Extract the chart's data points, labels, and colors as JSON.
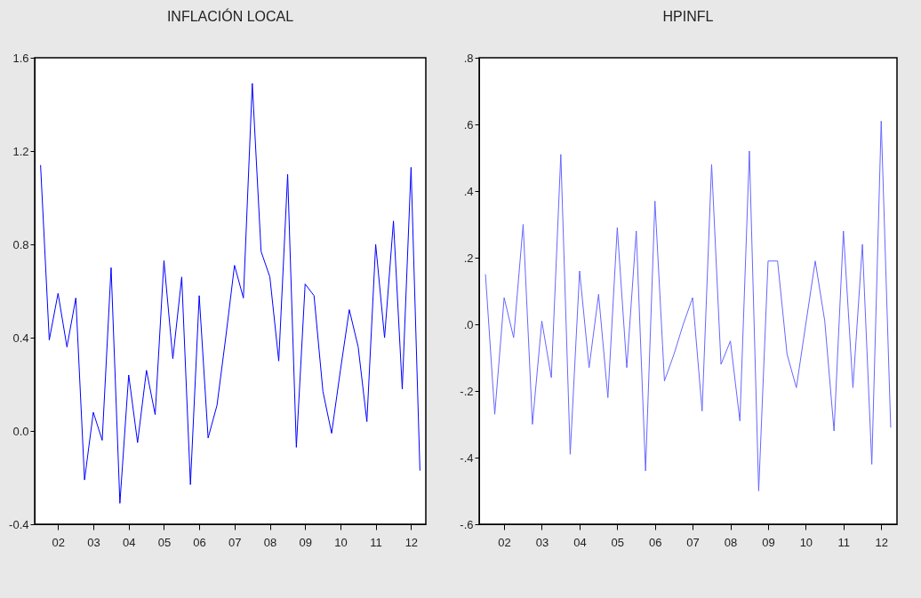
{
  "chart_data": [
    {
      "type": "line",
      "title": "INFLACIÓN LOCAL",
      "x": [
        "2002-01-01",
        "2002-04-01",
        "2002-07-01",
        "2002-10-01",
        "2003-01-01",
        "2003-04-01",
        "2003-07-01",
        "2003-10-01",
        "2004-01-01",
        "2004-04-01",
        "2004-07-01",
        "2004-10-01",
        "2005-01-01",
        "2005-04-01",
        "2005-07-01",
        "2005-10-01",
        "2006-01-01",
        "2006-04-01",
        "2006-07-01",
        "2006-10-01",
        "2007-01-01",
        "2007-04-01",
        "2007-07-01",
        "2007-10-01",
        "2008-01-01",
        "2008-04-01",
        "2008-07-01",
        "2008-10-01",
        "2009-01-01",
        "2009-04-01",
        "2009-07-01",
        "2009-10-01",
        "2010-01-01",
        "2010-04-01",
        "2010-07-01",
        "2010-10-01",
        "2011-01-01",
        "2011-04-01",
        "2011-07-01",
        "2011-10-01",
        "2012-01-01",
        "2012-04-01",
        "2012-07-01",
        "2012-10-01"
      ],
      "series": [
        {
          "color": "#0000ff",
          "values": [
            1.14,
            0.39,
            0.59,
            0.36,
            0.57,
            -0.21,
            0.08,
            -0.04,
            0.7,
            -0.31,
            0.24,
            -0.05,
            0.26,
            0.07,
            0.73,
            0.31,
            0.66,
            -0.23,
            0.58,
            -0.03,
            0.11,
            0.4,
            0.71,
            0.57,
            1.49,
            0.77,
            0.66,
            0.3,
            1.1,
            -0.07,
            0.63,
            0.58,
            0.17,
            -0.01,
            0.26,
            0.52,
            0.36,
            0.04,
            0.8,
            0.4,
            0.9,
            0.18,
            1.13,
            -0.17
          ]
        }
      ],
      "xlim": [
        "2001-11-01",
        "2012-12-01"
      ],
      "xticks": [
        {
          "value": "2002-07-01",
          "label": "02"
        },
        {
          "value": "2003-07-01",
          "label": "03"
        },
        {
          "value": "2004-07-01",
          "label": "04"
        },
        {
          "value": "2005-07-01",
          "label": "05"
        },
        {
          "value": "2006-07-01",
          "label": "06"
        },
        {
          "value": "2007-07-01",
          "label": "07"
        },
        {
          "value": "2008-07-01",
          "label": "08"
        },
        {
          "value": "2009-07-01",
          "label": "09"
        },
        {
          "value": "2010-07-01",
          "label": "10"
        },
        {
          "value": "2011-07-01",
          "label": "11"
        },
        {
          "value": "2012-07-01",
          "label": "12"
        }
      ],
      "ylim": [
        -0.4,
        1.6
      ],
      "yticks": [
        -0.4,
        {
          "value": 0,
          "label": "0.0"
        },
        0.4,
        0.8,
        1.2,
        1.6
      ],
      "grid": false
    },
    {
      "type": "line",
      "title": "HPINFL",
      "x": [
        "2002-01-01",
        "2002-04-01",
        "2002-07-01",
        "2002-10-01",
        "2003-01-01",
        "2003-04-01",
        "2003-07-01",
        "2003-10-01",
        "2004-01-01",
        "2004-04-01",
        "2004-07-01",
        "2004-10-01",
        "2005-01-01",
        "2005-04-01",
        "2005-07-01",
        "2005-10-01",
        "2006-01-01",
        "2006-04-01",
        "2006-07-01",
        "2006-10-01",
        "2007-01-01",
        "2007-04-01",
        "2007-07-01",
        "2007-10-01",
        "2008-01-01",
        "2008-04-01",
        "2008-07-01",
        "2008-10-01",
        "2009-01-01",
        "2009-04-01",
        "2009-07-01",
        "2009-10-01",
        "2010-01-01",
        "2010-04-01",
        "2010-07-01",
        "2010-10-01",
        "2011-01-01",
        "2011-04-01",
        "2011-07-01",
        "2011-10-01",
        "2012-01-01",
        "2012-04-01",
        "2012-07-01",
        "2012-10-01"
      ],
      "series": [
        {
          "color": "#6666ff",
          "values": [
            0.15,
            -0.27,
            0.08,
            -0.04,
            0.3,
            -0.3,
            0.01,
            -0.16,
            0.51,
            -0.39,
            0.16,
            -0.13,
            0.09,
            -0.22,
            0.29,
            -0.13,
            0.28,
            -0.44,
            0.37,
            -0.17,
            -0.09,
            0.0,
            0.08,
            -0.26,
            0.48,
            -0.12,
            -0.05,
            -0.29,
            0.52,
            -0.5,
            0.19,
            0.19,
            -0.09,
            -0.19,
            0.0,
            0.19,
            0.01,
            -0.32,
            0.28,
            -0.19,
            0.24,
            -0.42,
            0.61,
            -0.31
          ]
        }
      ],
      "xlim": [
        "2001-11-01",
        "2012-12-01"
      ],
      "xticks": [
        {
          "value": "2002-07-01",
          "label": "02"
        },
        {
          "value": "2003-07-01",
          "label": "03"
        },
        {
          "value": "2004-07-01",
          "label": "04"
        },
        {
          "value": "2005-07-01",
          "label": "05"
        },
        {
          "value": "2006-07-01",
          "label": "06"
        },
        {
          "value": "2007-07-01",
          "label": "07"
        },
        {
          "value": "2008-07-01",
          "label": "08"
        },
        {
          "value": "2009-07-01",
          "label": "09"
        },
        {
          "value": "2010-07-01",
          "label": "10"
        },
        {
          "value": "2011-07-01",
          "label": "11"
        },
        {
          "value": "2012-07-01",
          "label": "12"
        }
      ],
      "ylim": [
        -0.6,
        0.8
      ],
      "yticks": [
        {
          "value": -0.6,
          "label": "-.6"
        },
        {
          "value": -0.4,
          "label": "-.4"
        },
        {
          "value": -0.2,
          "label": "-.2"
        },
        {
          "value": 0,
          "label": ".0"
        },
        {
          "value": 0.2,
          "label": ".2"
        },
        {
          "value": 0.4,
          "label": ".4"
        },
        {
          "value": 0.6,
          "label": ".6"
        },
        {
          "value": 0.8,
          "label": ".8"
        }
      ],
      "grid": false
    }
  ]
}
